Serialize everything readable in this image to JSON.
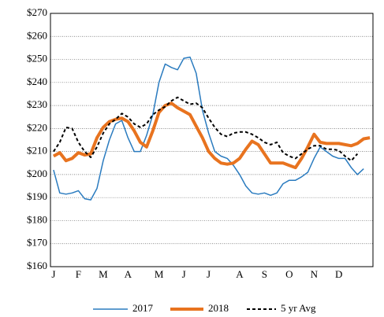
{
  "chart_data": {
    "type": "line",
    "categories": [
      "J",
      null,
      null,
      null,
      "F",
      null,
      null,
      null,
      "M",
      null,
      null,
      null,
      "A",
      null,
      null,
      null,
      null,
      "M",
      null,
      null,
      null,
      "J",
      null,
      null,
      null,
      "J",
      null,
      null,
      null,
      null,
      "A",
      null,
      null,
      null,
      "S",
      null,
      null,
      null,
      "O",
      null,
      null,
      null,
      "N",
      null,
      null,
      null,
      "D",
      null,
      null,
      null,
      null,
      null
    ],
    "series": [
      {
        "name": "2017",
        "color": "#2a7bbf",
        "width": 1.5,
        "dash": false,
        "values": [
          202,
          192,
          191.5,
          192,
          193,
          189.5,
          189,
          194,
          206,
          215,
          222,
          223.5,
          216,
          210,
          210,
          217,
          226,
          240,
          248,
          246.5,
          245.5,
          250.5,
          251,
          244,
          228,
          218,
          210,
          208,
          207,
          204,
          200,
          195,
          192,
          191.5,
          192,
          191,
          192,
          196,
          197.5,
          197.5,
          199,
          201,
          207,
          212,
          210,
          208,
          207,
          207,
          203,
          200,
          202.5,
          null
        ]
      },
      {
        "name": "2018",
        "color": "#e8731f",
        "width": 4,
        "dash": false,
        "values": [
          208,
          209.5,
          206,
          207,
          209.5,
          208.5,
          209,
          216,
          220.5,
          223,
          224,
          224.5,
          223,
          219,
          214,
          212,
          219,
          227,
          230,
          231,
          229,
          227.5,
          226,
          221,
          216,
          210,
          207,
          205,
          204.5,
          205,
          207,
          211,
          214.5,
          213,
          209,
          205,
          205,
          205,
          204,
          203,
          207,
          212,
          217.5,
          214,
          213.5,
          213.5,
          213.5,
          213,
          212.5,
          213.5,
          215.5,
          216
        ]
      },
      {
        "name": "5 yr Avg",
        "color": "#000000",
        "width": 2,
        "dash": true,
        "values": [
          210,
          214,
          220.5,
          220,
          214,
          210,
          207.5,
          212,
          218,
          222,
          224,
          226.5,
          225,
          222,
          220.5,
          222,
          226,
          228,
          229.5,
          232,
          233.5,
          232,
          230.5,
          231,
          229,
          224.5,
          220.5,
          217.5,
          216.5,
          218,
          218.5,
          218.5,
          217.5,
          216,
          214,
          213,
          214,
          209.5,
          208,
          207,
          209,
          211,
          212.5,
          212.5,
          211,
          211,
          210.5,
          208,
          206,
          209,
          null,
          null
        ]
      }
    ],
    "ylim": [
      160,
      270
    ],
    "yticks": [
      {
        "value": 160,
        "label": "$160"
      },
      {
        "value": 170,
        "label": "$170"
      },
      {
        "value": 180,
        "label": "$180"
      },
      {
        "value": 190,
        "label": "$190"
      },
      {
        "value": 200,
        "label": "$200"
      },
      {
        "value": 210,
        "label": "$210"
      },
      {
        "value": 220,
        "label": "$220"
      },
      {
        "value": 230,
        "label": "$230"
      },
      {
        "value": 240,
        "label": "$240"
      },
      {
        "value": 250,
        "label": "$250"
      },
      {
        "value": 260,
        "label": "$260"
      },
      {
        "value": 270,
        "label": "$270"
      }
    ],
    "grid": true,
    "legend": "bottom"
  }
}
